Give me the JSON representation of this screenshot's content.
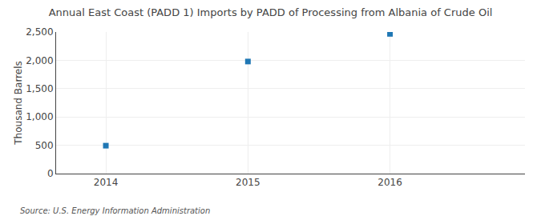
{
  "chart_data": {
    "type": "scatter",
    "title": "Annual East Coast (PADD 1) Imports by PADD of Processing from Albania of Crude Oil",
    "ylabel": "Thousand Barrels",
    "annotations": [
      "Source: U.S. Energy Information Administration"
    ],
    "x": [
      2014,
      2015,
      2016
    ],
    "values": [
      493,
      1979,
      2467
    ],
    "marker": "square",
    "xlim": [
      2013.65,
      2016.95
    ],
    "xticks": [
      2014,
      2015,
      2016
    ],
    "ylim": [
      0,
      2500
    ],
    "yticks": [
      0,
      500,
      {
        "value": 1000,
        "label": "1,000"
      },
      {
        "value": 1500,
        "label": "1,500"
      },
      {
        "value": 2000,
        "label": "2,000"
      },
      {
        "value": 2500,
        "label": "2,500"
      }
    ],
    "grid": true
  }
}
